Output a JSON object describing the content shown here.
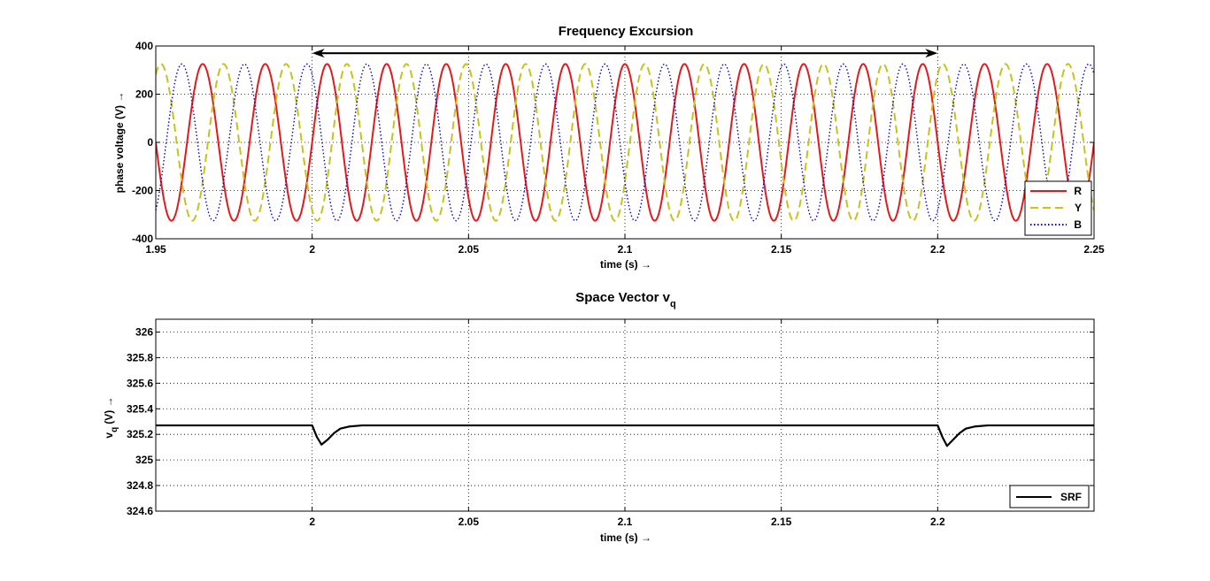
{
  "chart_data": [
    {
      "type": "line",
      "title": "Frequency Excursion",
      "xlabel": "time (s) →",
      "ylabel": "phase voltage (V)  →",
      "xlim": [
        1.95,
        2.25
      ],
      "ylim": [
        -400,
        400
      ],
      "xticks": [
        1.95,
        2.0,
        2.05,
        2.1,
        2.15,
        2.2,
        2.25
      ],
      "xtick_labels": [
        "1.95",
        "2",
        "2.05",
        "2.1",
        "2.15",
        "2.2",
        "2.25"
      ],
      "yticks": [
        -400,
        -200,
        0,
        200,
        400
      ],
      "ytick_labels": [
        "-400",
        "-200",
        "0",
        "200",
        "400"
      ],
      "grid": true,
      "legend_position": "bottom-right",
      "annotation": {
        "type": "double-arrow",
        "x_start": 2.0,
        "x_end": 2.2,
        "y": 370
      },
      "signal": {
        "amplitude": 325.27,
        "segments": [
          {
            "from": 1.95,
            "to": 2.0,
            "frequency_hz": 50
          },
          {
            "from": 2.0,
            "to": 2.2,
            "frequency_hz": 52.5
          },
          {
            "from": 2.2,
            "to": 2.25,
            "frequency_hz": 50
          }
        ]
      },
      "series": [
        {
          "name": "R",
          "phase_deg": 0,
          "color": "#e31a1c",
          "style": "solid"
        },
        {
          "name": "Y",
          "phase_deg": -120,
          "color": "#c8c21a",
          "style": "dashed"
        },
        {
          "name": "B",
          "phase_deg": 120,
          "color": "#0000cc",
          "style": "dotted"
        }
      ]
    },
    {
      "type": "line",
      "title": "Space Vector v",
      "title_sub": "q",
      "xlabel": "time (s) →",
      "ylabel": "(V) →",
      "ylabel_var": "v",
      "ylabel_sub": "q",
      "xlim": [
        1.95,
        2.25
      ],
      "ylim": [
        324.6,
        326.1
      ],
      "xticks": [
        2.0,
        2.05,
        2.1,
        2.15,
        2.2
      ],
      "xtick_labels": [
        "2",
        "2.05",
        "2.1",
        "2.15",
        "2.2"
      ],
      "yticks": [
        324.6,
        324.8,
        325.0,
        325.2,
        325.4,
        325.6,
        325.8,
        326.0
      ],
      "ytick_labels": [
        "324.6",
        "324.8",
        "325",
        "325.2",
        "325.4",
        "325.6",
        "325.8",
        "326"
      ],
      "grid": true,
      "legend_position": "bottom-right",
      "series": [
        {
          "name": "SRF",
          "color": "#000000",
          "x": [
            1.95,
            1.99,
            2.0,
            2.0015,
            2.003,
            2.005,
            2.007,
            2.009,
            2.012,
            2.016,
            2.05,
            2.1,
            2.15,
            2.19,
            2.2,
            2.2015,
            2.203,
            2.205,
            2.207,
            2.209,
            2.212,
            2.216,
            2.25
          ],
          "values": [
            325.27,
            325.27,
            325.27,
            325.18,
            325.12,
            325.16,
            325.21,
            325.245,
            325.262,
            325.27,
            325.27,
            325.27,
            325.27,
            325.27,
            325.27,
            325.18,
            325.11,
            325.16,
            325.21,
            325.245,
            325.262,
            325.27,
            325.27
          ]
        }
      ]
    }
  ]
}
